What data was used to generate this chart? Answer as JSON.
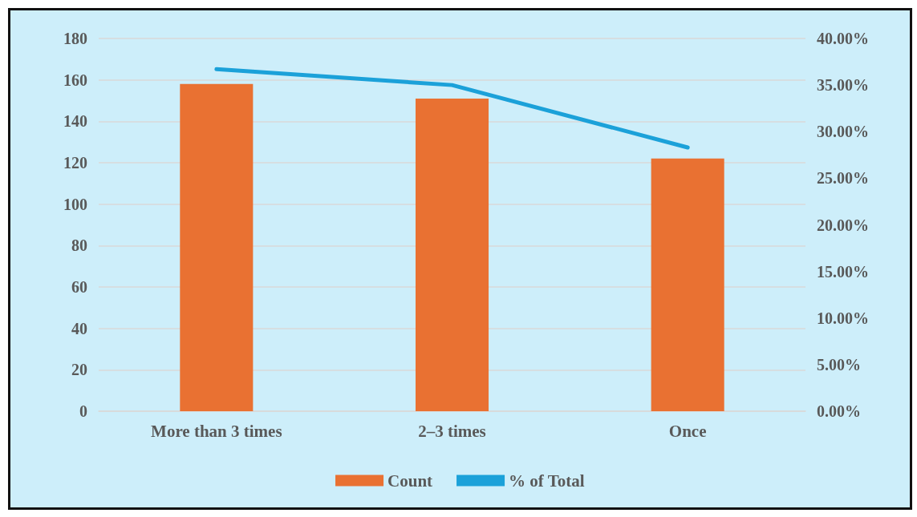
{
  "chart_data": {
    "type": "bar",
    "categories": [
      "More than 3 times",
      "2–3 times",
      "Once"
    ],
    "series": [
      {
        "name": "Count",
        "color": "#e97132",
        "values": [
          158,
          151,
          122
        ]
      },
      {
        "name": "% of Total",
        "type": "line",
        "axis": "y2",
        "color": "#1ba1d9",
        "values": [
          36.7,
          35.0,
          28.3
        ]
      }
    ],
    "ylim": [
      0,
      180
    ],
    "yticks": [
      0,
      20,
      40,
      60,
      80,
      100,
      120,
      140,
      160,
      180
    ],
    "y2lim": [
      0,
      40
    ],
    "y2ticks": [
      {
        "value": 0,
        "label": "0.00%"
      },
      {
        "value": 5,
        "label": "5.00%"
      },
      {
        "value": 10,
        "label": "10.00%"
      },
      {
        "value": 15,
        "label": "15.00%"
      },
      {
        "value": 20,
        "label": "20.00%"
      },
      {
        "value": 25,
        "label": "25.00%"
      },
      {
        "value": 30,
        "label": "30.00%"
      },
      {
        "value": 35,
        "label": "35.00%"
      },
      {
        "value": 40,
        "label": "40.00%"
      }
    ],
    "grid": "y",
    "legend": "bottom",
    "marker": "none"
  }
}
